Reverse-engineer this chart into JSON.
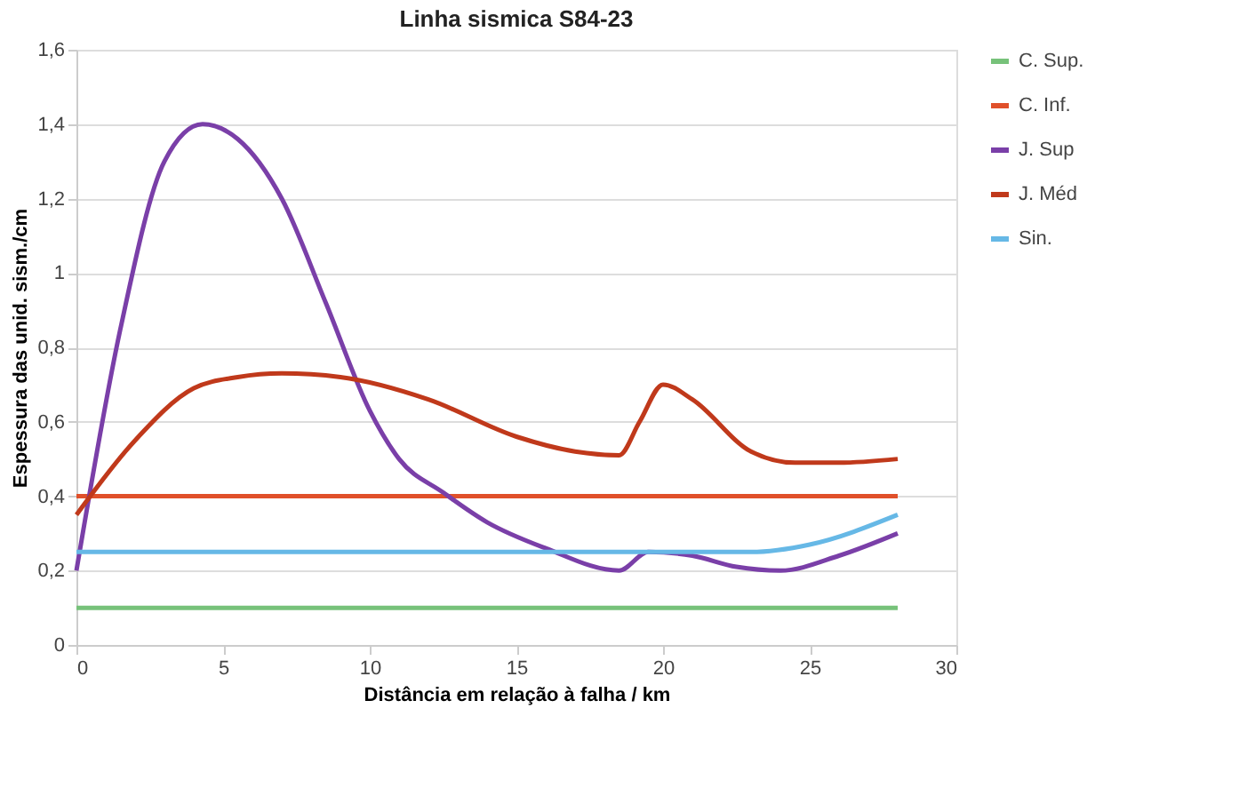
{
  "chart_data": {
    "type": "line",
    "title": "Linha sismica S84-23",
    "xlabel": "Distância em relação à falha / km",
    "ylabel": "Espessura das unid. sism./cm",
    "xlim": [
      0,
      30
    ],
    "xticks": [
      0,
      5,
      10,
      15,
      20,
      25,
      30
    ],
    "ylim": [
      0,
      1.6
    ],
    "yticks": [
      0,
      {
        "value": 0.2,
        "label": "0,2"
      },
      {
        "value": 0.4,
        "label": "0,4"
      },
      {
        "value": 0.6,
        "label": "0,6"
      },
      {
        "value": 0.8,
        "label": "0,8"
      },
      1,
      {
        "value": 1.2,
        "label": "1,2"
      },
      {
        "value": 1.4,
        "label": "1,4"
      },
      {
        "value": 1.6,
        "label": "1,6"
      }
    ],
    "grid": "y",
    "legend": "right",
    "marker": "none",
    "line_style": "solid",
    "series": [
      {
        "name": "C. Sup.",
        "color": "#77c27a",
        "x": [
          0,
          28
        ],
        "values": [
          0.1,
          0.1
        ]
      },
      {
        "name": "C. Inf.",
        "color": "#e0502a",
        "x": [
          0,
          28
        ],
        "values": [
          0.4,
          0.4
        ]
      },
      {
        "name": "J. Sup",
        "color": "#7a3fa8",
        "x": [
          0,
          1.5,
          3,
          4.3,
          5.5,
          7,
          8.5,
          10,
          11,
          12.5,
          14,
          16,
          18.5,
          19.5,
          21,
          22.5,
          24,
          26,
          28
        ],
        "values": [
          0.2,
          0.85,
          1.3,
          1.4,
          1.36,
          1.2,
          0.92,
          0.63,
          0.5,
          0.41,
          0.33,
          0.26,
          0.2,
          0.25,
          0.24,
          0.21,
          0.2,
          0.24,
          0.3
        ]
      },
      {
        "name": "J. Méd",
        "color": "#c0391b",
        "x": [
          0,
          2,
          4,
          5.5,
          7,
          9,
          12,
          15,
          17,
          18.5,
          19.2,
          20,
          21,
          23,
          24.5,
          26,
          28
        ],
        "values": [
          0.35,
          0.55,
          0.69,
          0.72,
          0.73,
          0.72,
          0.66,
          0.56,
          0.52,
          0.51,
          0.6,
          0.7,
          0.66,
          0.52,
          0.49,
          0.49,
          0.5
        ]
      },
      {
        "name": "Sin.",
        "color": "#66b8e6",
        "x": [
          0,
          10,
          20,
          23,
          25,
          28
        ],
        "values": [
          0.25,
          0.25,
          0.25,
          0.25,
          0.27,
          0.35
        ]
      }
    ]
  }
}
